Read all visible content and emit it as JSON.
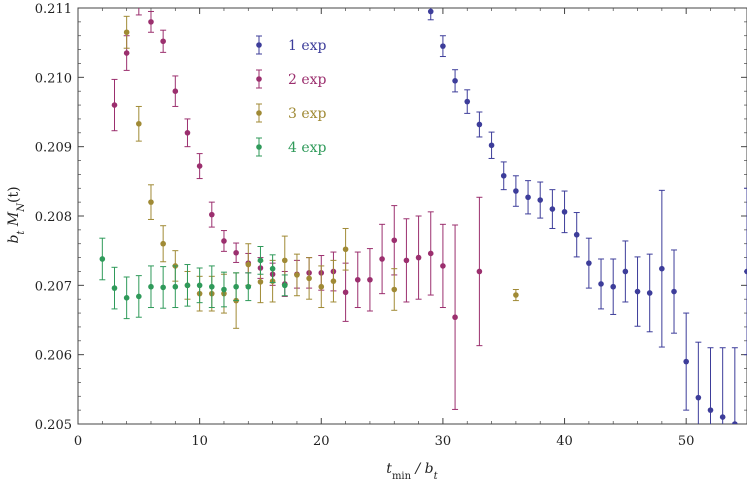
{
  "chart_data": {
    "type": "scatter",
    "title": "",
    "xlabel": "t_min / b_t",
    "ylabel": "b_t M_N(t)",
    "xlim": [
      0,
      55
    ],
    "ylim": [
      0.205,
      0.211
    ],
    "x_ticks": [
      0,
      10,
      20,
      30,
      40,
      50
    ],
    "y_ticks": [
      0.205,
      0.206,
      0.207,
      0.208,
      0.209,
      0.21,
      0.211
    ],
    "y_tick_labels": [
      "0.205",
      "0.206",
      "0.207",
      "0.208",
      "0.209",
      "0.210",
      "0.211"
    ],
    "legend_position": "top-center",
    "series": [
      {
        "name": "1 exp",
        "color": "#3d3d9a",
        "points": [
          [
            29,
            0.21095,
            0.00012
          ],
          [
            30,
            0.21045,
            0.00015
          ],
          [
            31,
            0.20995,
            0.00016
          ],
          [
            32,
            0.20965,
            0.00017
          ],
          [
            33,
            0.20932,
            0.00018
          ],
          [
            34,
            0.20902,
            0.00019
          ],
          [
            35,
            0.20858,
            0.0002
          ],
          [
            36,
            0.20836,
            0.00022
          ],
          [
            37,
            0.20827,
            0.00024
          ],
          [
            38,
            0.20823,
            0.00026
          ],
          [
            39,
            0.2081,
            0.00028
          ],
          [
            40,
            0.20806,
            0.0003
          ],
          [
            41,
            0.20773,
            0.00032
          ],
          [
            42,
            0.20732,
            0.00036
          ],
          [
            43,
            0.20702,
            0.00036
          ],
          [
            44,
            0.20698,
            0.0004
          ],
          [
            45,
            0.2072,
            0.00044
          ],
          [
            46,
            0.20691,
            0.0005
          ],
          [
            47,
            0.20689,
            0.00056
          ],
          [
            48,
            0.20724,
            0.00113
          ],
          [
            49,
            0.20691,
            0.0006
          ],
          [
            50,
            0.2059,
            0.0007
          ],
          [
            51,
            0.20538,
            0.0008
          ],
          [
            52,
            0.2052,
            0.0009
          ],
          [
            53,
            0.2051,
            0.001
          ],
          [
            54,
            0.205,
            0.0011
          ],
          [
            55,
            0.2072,
            0.0012
          ]
        ]
      },
      {
        "name": "2 exp",
        "color": "#9b2f6e",
        "points": [
          [
            3,
            0.2096,
            0.00037
          ],
          [
            4,
            0.21035,
            0.00025
          ],
          [
            5,
            0.2111,
            0.0002
          ],
          [
            6,
            0.2108,
            0.00015
          ],
          [
            7,
            0.21052,
            0.00016
          ],
          [
            8,
            0.2098,
            0.00022
          ],
          [
            9,
            0.2092,
            0.0002
          ],
          [
            10,
            0.20872,
            0.00018
          ],
          [
            11,
            0.20802,
            0.00018
          ],
          [
            12,
            0.20764,
            0.00015
          ],
          [
            13,
            0.20747,
            0.00014
          ],
          [
            14,
            0.20732,
            0.00014
          ],
          [
            15,
            0.20725,
            0.00015
          ],
          [
            16,
            0.20716,
            0.00016
          ],
          [
            17,
            0.20702,
            0.00018
          ],
          [
            18,
            0.20716,
            0.0002
          ],
          [
            19,
            0.20718,
            0.00022
          ],
          [
            20,
            0.20718,
            0.00025
          ],
          [
            21,
            0.2072,
            0.00028
          ],
          [
            22,
            0.2069,
            0.00042
          ],
          [
            23,
            0.20708,
            0.0004
          ],
          [
            24,
            0.20708,
            0.00045
          ],
          [
            25,
            0.20738,
            0.0005
          ],
          [
            26,
            0.20765,
            0.0005
          ],
          [
            27,
            0.20736,
            0.0006
          ],
          [
            28,
            0.2074,
            0.0006
          ],
          [
            29,
            0.20746,
            0.0006
          ],
          [
            30,
            0.20728,
            0.0006
          ],
          [
            31,
            0.20654,
            0.00133
          ],
          [
            33,
            0.2072,
            0.00107
          ]
        ]
      },
      {
        "name": "3 exp",
        "color": "#a08a35",
        "points": [
          [
            4,
            0.21065,
            0.00023
          ],
          [
            5,
            0.20933,
            0.00025
          ],
          [
            6,
            0.2082,
            0.00025
          ],
          [
            7,
            0.2076,
            0.00026
          ],
          [
            8,
            0.20728,
            0.00022
          ],
          [
            9,
            0.207,
            0.0002
          ],
          [
            10,
            0.20688,
            0.00025
          ],
          [
            11,
            0.20688,
            0.00025
          ],
          [
            12,
            0.20688,
            0.00028
          ],
          [
            13,
            0.20678,
            0.0004
          ],
          [
            14,
            0.2073,
            0.0003
          ],
          [
            15,
            0.20705,
            0.0003
          ],
          [
            16,
            0.20706,
            0.0003
          ],
          [
            17,
            0.20736,
            0.00035
          ],
          [
            18,
            0.20715,
            0.0003
          ],
          [
            19,
            0.2071,
            0.0003
          ],
          [
            20,
            0.20698,
            0.0003
          ],
          [
            21,
            0.20706,
            0.0003
          ],
          [
            22,
            0.20752,
            0.0003
          ],
          [
            26,
            0.20694,
            0.0003
          ],
          [
            36,
            0.20686,
            8e-05
          ]
        ]
      },
      {
        "name": "4 exp",
        "color": "#2f9a5a",
        "points": [
          [
            2,
            0.20738,
            0.0003
          ],
          [
            3,
            0.20696,
            0.0003
          ],
          [
            4,
            0.20682,
            0.0003
          ],
          [
            5,
            0.20684,
            0.0003
          ],
          [
            6,
            0.20698,
            0.0003
          ],
          [
            7,
            0.20697,
            0.0003
          ],
          [
            8,
            0.20698,
            0.0003
          ],
          [
            9,
            0.207,
            0.0003
          ],
          [
            10,
            0.207,
            0.00025
          ],
          [
            11,
            0.20698,
            0.0003
          ],
          [
            12,
            0.20694,
            0.00025
          ],
          [
            13,
            0.20698,
            0.0002
          ],
          [
            14,
            0.20698,
            0.0002
          ],
          [
            15,
            0.20736,
            0.0002
          ],
          [
            16,
            0.20724,
            0.0002
          ],
          [
            17,
            0.207,
            0.00015
          ]
        ]
      }
    ]
  }
}
